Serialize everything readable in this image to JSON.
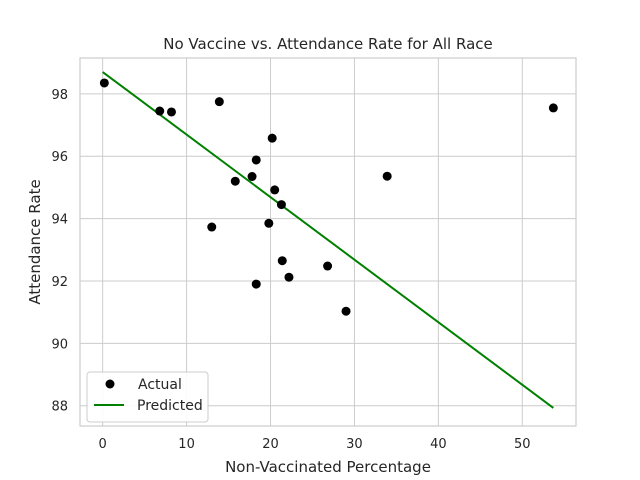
{
  "chart_data": {
    "type": "scatter",
    "title": "No Vaccine vs. Attendance Rate for All Race",
    "xlabel": "Non-Vaccinated Percentage",
    "ylabel": "Attendance Rate",
    "xlim": [
      -2.7,
      56.4
    ],
    "ylim": [
      87.35,
      99.15
    ],
    "xticks": [
      0,
      10,
      20,
      30,
      40,
      50
    ],
    "yticks": [
      88,
      90,
      92,
      94,
      96,
      98
    ],
    "grid": true,
    "legend_position": "bottom-left",
    "series": [
      {
        "name": "Actual",
        "kind": "scatter",
        "color": "#000000",
        "points": [
          {
            "x": 0.2,
            "y": 98.35
          },
          {
            "x": 6.8,
            "y": 97.45
          },
          {
            "x": 8.2,
            "y": 97.42
          },
          {
            "x": 13.0,
            "y": 93.73
          },
          {
            "x": 13.9,
            "y": 97.75
          },
          {
            "x": 15.8,
            "y": 95.2
          },
          {
            "x": 17.8,
            "y": 95.35
          },
          {
            "x": 18.3,
            "y": 95.88
          },
          {
            "x": 18.3,
            "y": 91.9
          },
          {
            "x": 19.8,
            "y": 93.85
          },
          {
            "x": 20.2,
            "y": 96.58
          },
          {
            "x": 20.5,
            "y": 94.92
          },
          {
            "x": 21.3,
            "y": 94.45
          },
          {
            "x": 21.4,
            "y": 92.65
          },
          {
            "x": 22.2,
            "y": 92.12
          },
          {
            "x": 26.8,
            "y": 92.48
          },
          {
            "x": 29.0,
            "y": 91.03
          },
          {
            "x": 33.9,
            "y": 95.36
          },
          {
            "x": 53.7,
            "y": 97.55
          }
        ]
      },
      {
        "name": "Predicted",
        "kind": "line",
        "color": "#008000",
        "points": [
          {
            "x": 0.0,
            "y": 98.7
          },
          {
            "x": 53.7,
            "y": 87.93
          }
        ]
      }
    ]
  }
}
